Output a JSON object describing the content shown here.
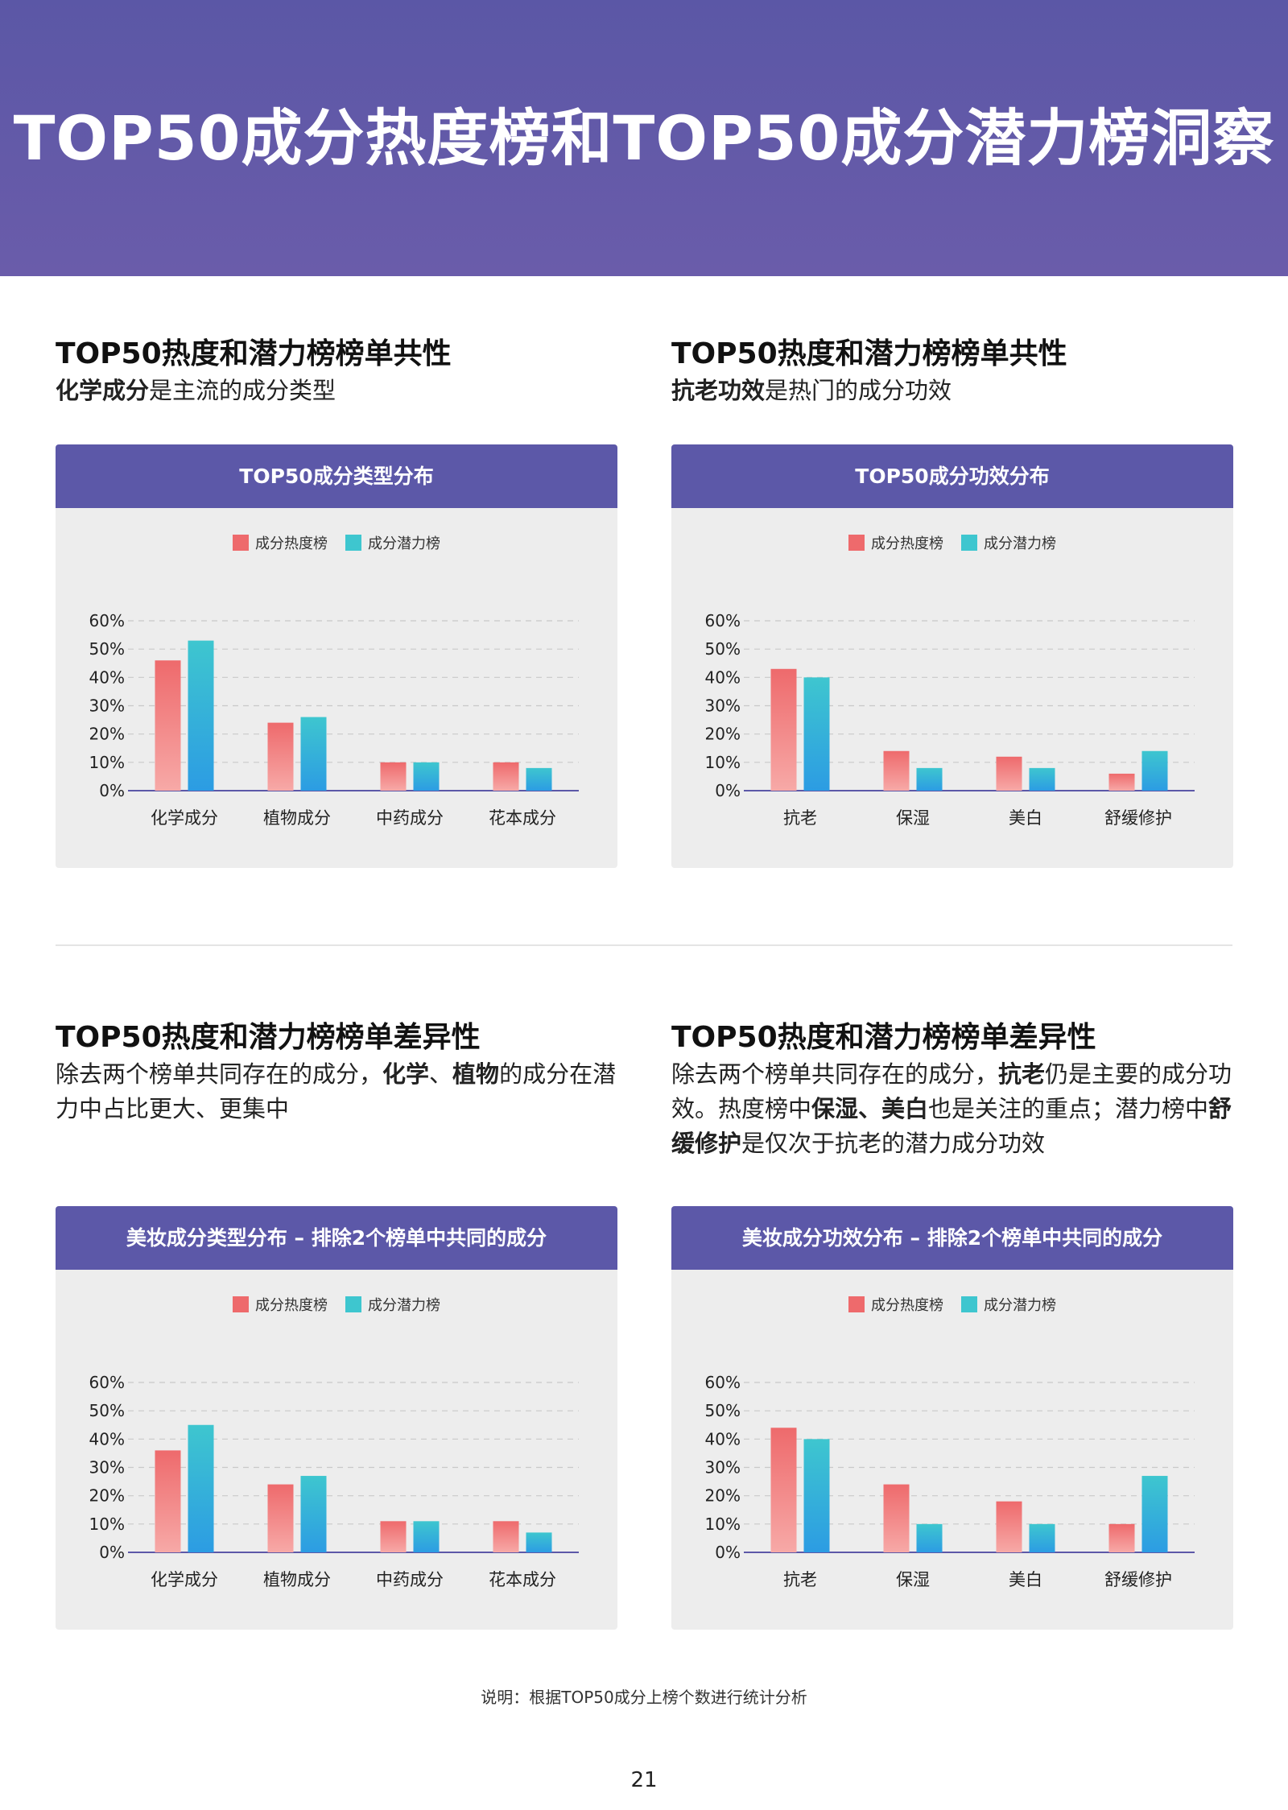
{
  "page_title": "TOP50成分热度榜和TOP50成分潜力榜洞察",
  "sections": [
    {
      "title": "TOP50热度和潜力榜榜单共性",
      "sub_parts": [
        {
          "text": "化学成分",
          "bold": true
        },
        {
          "text": "是主流的成分类型",
          "bold": false
        }
      ],
      "chart_title": "TOP50成分类型分布"
    },
    {
      "title": "TOP50热度和潜力榜榜单共性",
      "sub_parts": [
        {
          "text": "抗老功效",
          "bold": true
        },
        {
          "text": "是热门的成分功效",
          "bold": false
        }
      ],
      "chart_title": "TOP50成分功效分布"
    },
    {
      "title": "TOP50热度和潜力榜榜单差异性",
      "sub_parts": [
        {
          "text": "除去两个榜单共同存在的成分，",
          "bold": false
        },
        {
          "text": "化学",
          "bold": true
        },
        {
          "text": "、",
          "bold": false
        },
        {
          "text": "植物",
          "bold": true
        },
        {
          "text": "的成分在潜力中占比更大、更集中",
          "bold": false
        }
      ],
      "chart_title": "美妆成分类型分布 – 排除2个榜单中共同的成分"
    },
    {
      "title": "TOP50热度和潜力榜榜单差异性",
      "sub_parts": [
        {
          "text": "除去两个榜单共同存在的成分，",
          "bold": false
        },
        {
          "text": "抗老",
          "bold": true
        },
        {
          "text": "仍是主要的成分功效。热度榜中",
          "bold": false
        },
        {
          "text": "保湿、美白",
          "bold": true
        },
        {
          "text": "也是关注的重点；潜力榜中",
          "bold": false
        },
        {
          "text": "舒缓修护",
          "bold": true
        },
        {
          "text": "是仅次于抗老的潜力成分功效",
          "bold": false
        }
      ],
      "chart_title": "美妆成分功效分布 – 排除2个榜单中共同的成分"
    }
  ],
  "chart_data": [
    {
      "type": "bar",
      "title": "TOP50成分类型分布",
      "categories": [
        "化学成分",
        "植物成分",
        "中药成分",
        "花本成分"
      ],
      "series": [
        {
          "name": "成分热度榜",
          "values": [
            46,
            24,
            10,
            10
          ]
        },
        {
          "name": "成分潜力榜",
          "values": [
            53,
            26,
            10,
            8
          ]
        }
      ],
      "yticks": [
        "0%",
        "10%",
        "20%",
        "30%",
        "40%",
        "50%",
        "60%"
      ],
      "ylim": [
        0,
        60
      ],
      "grid": true,
      "legend": "top"
    },
    {
      "type": "bar",
      "title": "TOP50成分功效分布",
      "categories": [
        "抗老",
        "保湿",
        "美白",
        "舒缓修护"
      ],
      "series": [
        {
          "name": "成分热度榜",
          "values": [
            43,
            14,
            12,
            6
          ]
        },
        {
          "name": "成分潜力榜",
          "values": [
            40,
            8,
            8,
            14
          ]
        }
      ],
      "yticks": [
        "0%",
        "10%",
        "20%",
        "30%",
        "40%",
        "50%",
        "60%"
      ],
      "ylim": [
        0,
        60
      ],
      "grid": true,
      "legend": "top"
    },
    {
      "type": "bar",
      "title": "美妆成分类型分布 – 排除2个榜单中共同的成分",
      "categories": [
        "化学成分",
        "植物成分",
        "中药成分",
        "花本成分"
      ],
      "series": [
        {
          "name": "成分热度榜",
          "values": [
            36,
            24,
            11,
            11
          ]
        },
        {
          "name": "成分潜力榜",
          "values": [
            45,
            27,
            11,
            7
          ]
        }
      ],
      "yticks": [
        "0%",
        "10%",
        "20%",
        "30%",
        "40%",
        "50%",
        "60%"
      ],
      "ylim": [
        0,
        60
      ],
      "grid": true,
      "legend": "top"
    },
    {
      "type": "bar",
      "title": "美妆成分功效分布 – 排除2个榜单中共同的成分",
      "categories": [
        "抗老",
        "保湿",
        "美白",
        "舒缓修护"
      ],
      "series": [
        {
          "name": "成分热度榜",
          "values": [
            44,
            24,
            18,
            10
          ]
        },
        {
          "name": "成分潜力榜",
          "values": [
            40,
            10,
            10,
            27
          ]
        }
      ],
      "yticks": [
        "0%",
        "10%",
        "20%",
        "30%",
        "40%",
        "50%",
        "60%"
      ],
      "ylim": [
        0,
        60
      ],
      "grid": true,
      "legend": "top"
    }
  ],
  "colors": {
    "heat_top": "#ee6a6c",
    "heat_bottom": "#f7a9a7",
    "potential_top": "#3ec6cf",
    "potential_bottom": "#2c9ce3",
    "axis": "#5c58a8",
    "header": "#5c58a8"
  },
  "note": "说明：根据TOP50成分上榜个数进行统计分析",
  "page_number": "21"
}
